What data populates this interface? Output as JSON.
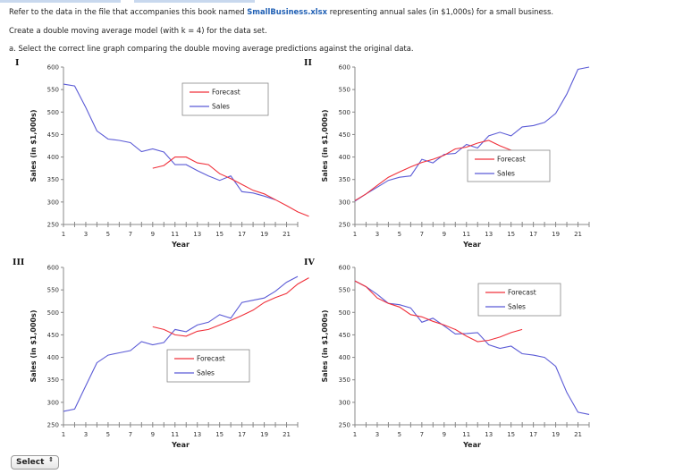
{
  "intro": {
    "text_before": "Refer to the data in the file that accompanies this book named ",
    "file_name": "SmallBusiness.xlsx",
    "text_after": " representing annual sales (in $1,000s) for a small business."
  },
  "task": "Create a double moving average model (with k = 4) for the data set.",
  "question": "a. Select the correct line graph comparing the double moving average predictions against the original data.",
  "select": {
    "label": "Select",
    "arrow": "⇕"
  },
  "colors": {
    "sales": "#5b5bd6",
    "forecast": "#f0303a"
  },
  "chart_data": [
    {
      "type": "line",
      "option": "I",
      "xlabel": "Year",
      "ylabel": "Sales (in $1,000s)",
      "x_ticks": [
        1,
        3,
        5,
        7,
        9,
        11,
        13,
        15,
        17,
        19,
        21
      ],
      "y_ticks": [
        250,
        300,
        350,
        400,
        450,
        500,
        550,
        600
      ],
      "ylim": [
        250,
        600
      ],
      "xlim": [
        1,
        22
      ],
      "legend": {
        "position": "top-right",
        "entries": [
          "Forecast",
          "Sales"
        ]
      },
      "series": [
        {
          "name": "Sales",
          "start_x": 1,
          "values": [
            562,
            558,
            510,
            458,
            440,
            437,
            432,
            412,
            418,
            411,
            383,
            383,
            370,
            358,
            348,
            358,
            323,
            320,
            313,
            305
          ]
        },
        {
          "name": "Forecast",
          "start_x": 9,
          "values": [
            375,
            381,
            400,
            400,
            387,
            383,
            363,
            352,
            339,
            326,
            318,
            305,
            292,
            278,
            268
          ]
        }
      ]
    },
    {
      "type": "line",
      "option": "II",
      "xlabel": "Year",
      "ylabel": "Sales (in $1,000s)",
      "x_ticks": [
        1,
        3,
        5,
        7,
        9,
        11,
        13,
        15,
        17,
        19,
        21
      ],
      "y_ticks": [
        250,
        300,
        350,
        400,
        450,
        500,
        550,
        600
      ],
      "ylim": [
        250,
        600
      ],
      "xlim": [
        1,
        22
      ],
      "legend": {
        "position": "right",
        "entries": [
          "Forecast",
          "Sales"
        ]
      },
      "series": [
        {
          "name": "Sales",
          "start_x": 1,
          "values": [
            302,
            318,
            333,
            348,
            355,
            358,
            395,
            387,
            406,
            408,
            428,
            420,
            447,
            455,
            447,
            467,
            470,
            477,
            497,
            540,
            595,
            600
          ]
        },
        {
          "name": "Forecast",
          "start_x": 1,
          "values": [
            303,
            318,
            337,
            355,
            367,
            378,
            388,
            395,
            404,
            418,
            422,
            431,
            437,
            425,
            415,
            407
          ]
        }
      ]
    },
    {
      "type": "line",
      "option": "III",
      "xlabel": "Year",
      "ylabel": "Sales (in $1,000s)",
      "x_ticks": [
        1,
        3,
        5,
        7,
        9,
        11,
        13,
        15,
        17,
        19,
        21
      ],
      "y_ticks": [
        250,
        300,
        350,
        400,
        450,
        500,
        550,
        600
      ],
      "ylim": [
        250,
        600
      ],
      "xlim": [
        1,
        22
      ],
      "legend": {
        "position": "bottom-center",
        "entries": [
          "Forecast",
          "Sales"
        ]
      },
      "series": [
        {
          "name": "Sales",
          "start_x": 1,
          "values": [
            280,
            285,
            337,
            388,
            405,
            410,
            415,
            435,
            428,
            433,
            462,
            457,
            472,
            478,
            495,
            487,
            522,
            527,
            532,
            547,
            567,
            580
          ]
        },
        {
          "name": "Forecast",
          "start_x": 9,
          "values": [
            468,
            462,
            450,
            447,
            458,
            462,
            472,
            482,
            493,
            505,
            522,
            533,
            542,
            563,
            577
          ]
        }
      ]
    },
    {
      "type": "line",
      "option": "IV",
      "xlabel": "Year",
      "ylabel": "Sales (in $1,000s)",
      "x_ticks": [
        1,
        3,
        5,
        7,
        9,
        11,
        13,
        15,
        17,
        19,
        21
      ],
      "y_ticks": [
        250,
        300,
        350,
        400,
        450,
        500,
        550,
        600
      ],
      "ylim": [
        250,
        600
      ],
      "xlim": [
        1,
        22
      ],
      "legend": {
        "position": "top-right",
        "entries": [
          "Forecast",
          "Sales"
        ]
      },
      "series": [
        {
          "name": "Sales",
          "start_x": 1,
          "values": [
            570,
            557,
            540,
            520,
            517,
            510,
            478,
            487,
            470,
            452,
            453,
            455,
            428,
            420,
            425,
            408,
            405,
            400,
            380,
            322,
            278,
            273
          ]
        },
        {
          "name": "Forecast",
          "start_x": 1,
          "values": [
            570,
            557,
            532,
            520,
            512,
            495,
            490,
            480,
            472,
            462,
            447,
            435,
            438,
            445,
            455,
            462
          ]
        }
      ]
    }
  ]
}
